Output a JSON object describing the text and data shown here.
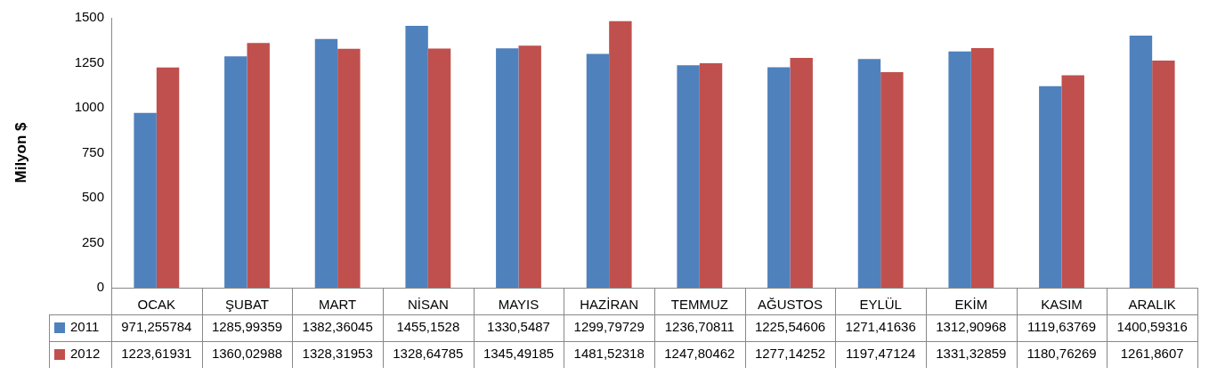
{
  "chart_data": {
    "type": "bar",
    "ylabel": "Milyon $",
    "categories": [
      "OCAK",
      "ŞUBAT",
      "MART",
      "NİSAN",
      "MAYIS",
      "HAZİRAN",
      "TEMMUZ",
      "AĞUSTOS",
      "EYLÜL",
      "EKİM",
      "KASIM",
      "ARALIK"
    ],
    "series": [
      {
        "name": "2011",
        "color": "#4f81bd",
        "values": [
          971.255784,
          1285.99359,
          1382.36045,
          1455.1528,
          1330.5487,
          1299.79729,
          1236.70811,
          1225.54606,
          1271.41636,
          1312.90968,
          1119.63769,
          1400.59316
        ],
        "value_labels": [
          "971,255784",
          "1285,99359",
          "1382,36045",
          "1455,1528",
          "1330,5487",
          "1299,79729",
          "1236,70811",
          "1225,54606",
          "1271,41636",
          "1312,90968",
          "1119,63769",
          "1400,59316"
        ]
      },
      {
        "name": "2012",
        "color": "#c0504d",
        "values": [
          1223.61931,
          1360.02988,
          1328.31953,
          1328.64785,
          1345.49185,
          1481.52318,
          1247.80462,
          1277.14252,
          1197.47124,
          1331.32859,
          1180.76269,
          1261.8607
        ],
        "value_labels": [
          "1223,61931",
          "1360,02988",
          "1328,31953",
          "1328,64785",
          "1345,49185",
          "1481,52318",
          "1247,80462",
          "1277,14252",
          "1197,47124",
          "1331,32859",
          "1180,76269",
          "1261,8607"
        ]
      }
    ],
    "ylim": [
      0,
      1500
    ],
    "yticks": [
      0,
      250,
      500,
      750,
      1000,
      1250,
      1500
    ],
    "legend": "bottom left",
    "grid": false
  }
}
